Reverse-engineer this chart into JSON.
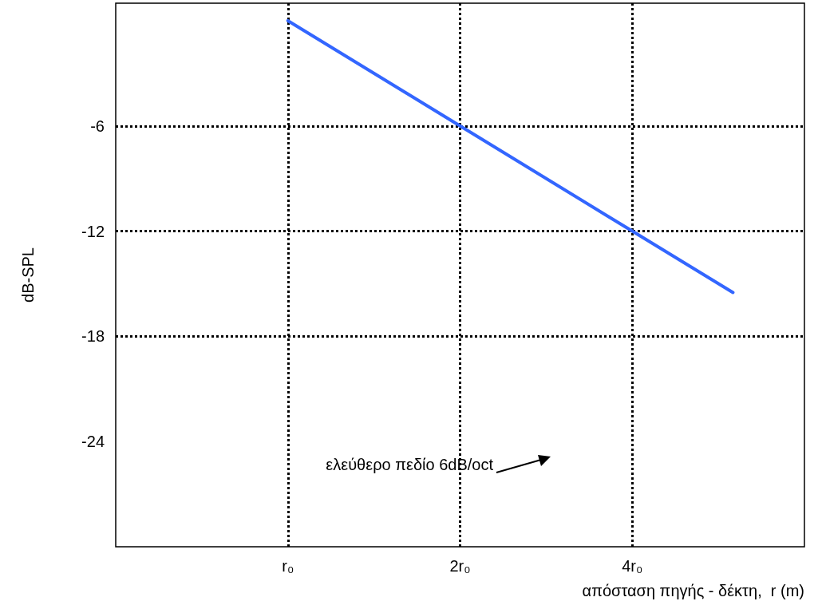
{
  "chart_data": {
    "type": "line",
    "xlabel": "απόσταση πηγής - δέκτη,  r (m)",
    "ylabel": "dB-SPL",
    "log": "x",
    "xlim": [
      0.5,
      8
    ],
    "xticks": [
      {
        "value": 1,
        "label": "r₀"
      },
      {
        "value": 2,
        "label": "2r₀"
      },
      {
        "value": 4,
        "label": "4r₀"
      }
    ],
    "ylim": [
      -30,
      1
    ],
    "yticks": [
      -6,
      -12,
      -18,
      -24
    ],
    "grid": false,
    "marker": "none",
    "series": [
      {
        "color": "#3366ff",
        "x": [
          1,
          2,
          4,
          6
        ],
        "values": [
          0,
          -6,
          -12,
          -15.5
        ]
      }
    ],
    "ref_lines": [
      {
        "axis": "y",
        "value": -6,
        "color": "#000000",
        "line_style": "dotted"
      },
      {
        "axis": "y",
        "value": -12,
        "color": "#000000",
        "line_style": "dotted"
      },
      {
        "axis": "y",
        "value": -18,
        "color": "#000000",
        "line_style": "dotted"
      },
      {
        "axis": "x",
        "value": 1,
        "color": "#000000",
        "line_style": "dotted"
      },
      {
        "axis": "x",
        "value": 2,
        "color": "#000000",
        "line_style": "dotted"
      },
      {
        "axis": "x",
        "value": 4,
        "color": "#000000",
        "line_style": "dotted"
      }
    ],
    "annotations": [
      "ελεύθερο πεδίο 6dB/oct"
    ]
  }
}
